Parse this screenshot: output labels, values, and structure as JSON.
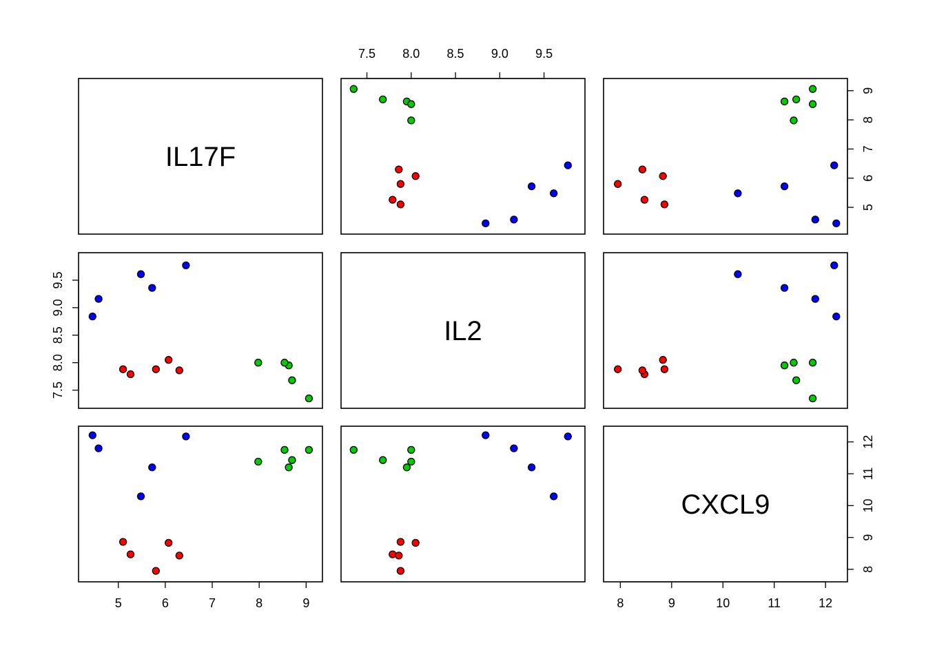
{
  "chart_data": {
    "type": "scatter",
    "variables": [
      "IL17F",
      "IL2",
      "CXCL9"
    ],
    "axis_ranges": {
      "IL17F": [
        4.27,
        9.23
      ],
      "IL2": [
        7.27,
        9.9
      ],
      "CXCL9": [
        7.78,
        12.32
      ]
    },
    "axis_ticks": {
      "IL17F": {
        "values": [
          5,
          6,
          7,
          8,
          9
        ],
        "labels": [
          "5",
          "6",
          "7",
          "8",
          "9"
        ]
      },
      "IL2": {
        "values": [
          7.5,
          8.0,
          8.5,
          9.0,
          9.5
        ],
        "labels": [
          "7.5",
          "8.0",
          "8.5",
          "9.0",
          "9.5"
        ]
      },
      "CXCL9": {
        "values": [
          8,
          9,
          10,
          11,
          12
        ],
        "labels": [
          "8",
          "9",
          "10",
          "11",
          "12"
        ]
      }
    },
    "groups": [
      {
        "color": "#ff0000",
        "IL17F": [
          5.26,
          5.1,
          5.8,
          6.3,
          6.07
        ],
        "IL2": [
          7.79,
          7.88,
          7.88,
          7.86,
          8.05
        ],
        "CXCL9": [
          8.47,
          8.86,
          7.95,
          8.43,
          8.83
        ]
      },
      {
        "color": "#00cc00",
        "IL17F": [
          9.06,
          8.7,
          8.63,
          8.54,
          7.98
        ],
        "IL2": [
          7.35,
          7.68,
          7.95,
          8.0,
          8.0
        ],
        "CXCL9": [
          11.75,
          11.43,
          11.2,
          11.75,
          11.38
        ]
      },
      {
        "color": "#0000ff",
        "IL17F": [
          4.45,
          4.58,
          5.72,
          5.48,
          6.44
        ],
        "IL2": [
          8.84,
          9.16,
          9.36,
          9.61,
          9.77
        ],
        "CXCL9": [
          12.21,
          11.8,
          11.2,
          10.29,
          12.17
        ]
      }
    ],
    "grid": false,
    "legend": "none"
  }
}
